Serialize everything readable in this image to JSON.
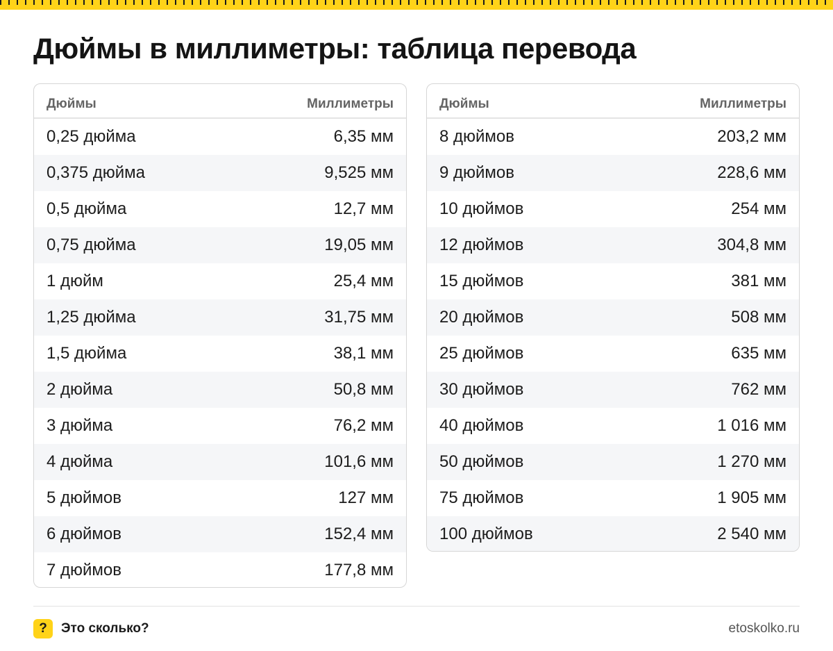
{
  "title": "Дюймы в миллиметры: таблица перевода",
  "table_header": {
    "inches": "Дюймы",
    "millimeters": "Миллиметры"
  },
  "left_rows": [
    {
      "inches": "0,25 дюйма",
      "mm": "6,35 мм"
    },
    {
      "inches": "0,375 дюйма",
      "mm": "9,525 мм"
    },
    {
      "inches": "0,5 дюйма",
      "mm": "12,7 мм"
    },
    {
      "inches": "0,75 дюйма",
      "mm": "19,05 мм"
    },
    {
      "inches": "1 дюйм",
      "mm": "25,4 мм"
    },
    {
      "inches": "1,25 дюйма",
      "mm": "31,75 мм"
    },
    {
      "inches": "1,5 дюйма",
      "mm": "38,1 мм"
    },
    {
      "inches": "2 дюйма",
      "mm": "50,8 мм"
    },
    {
      "inches": "3 дюйма",
      "mm": "76,2 мм"
    },
    {
      "inches": "4 дюйма",
      "mm": "101,6 мм"
    },
    {
      "inches": "5 дюймов",
      "mm": "127 мм"
    },
    {
      "inches": "6 дюймов",
      "mm": "152,4 мм"
    },
    {
      "inches": "7 дюймов",
      "mm": "177,8 мм"
    }
  ],
  "right_rows": [
    {
      "inches": "8 дюймов",
      "mm": "203,2 мм"
    },
    {
      "inches": "9 дюймов",
      "mm": "228,6 мм"
    },
    {
      "inches": "10 дюймов",
      "mm": "254 мм"
    },
    {
      "inches": "12 дюймов",
      "mm": "304,8 мм"
    },
    {
      "inches": "15 дюймов",
      "mm": "381 мм"
    },
    {
      "inches": "20 дюймов",
      "mm": "508 мм"
    },
    {
      "inches": "25 дюймов",
      "mm": "635 мм"
    },
    {
      "inches": "30 дюймов",
      "mm": "762 мм"
    },
    {
      "inches": "40 дюймов",
      "mm": "1 016 мм"
    },
    {
      "inches": "50 дюймов",
      "mm": "1 270 мм"
    },
    {
      "inches": "75 дюймов",
      "mm": "1 905 мм"
    },
    {
      "inches": "100 дюймов",
      "mm": "2 540 мм"
    }
  ],
  "footer": {
    "logo_symbol": "?",
    "brand": "Это сколько?",
    "site": "etoskolko.ru"
  },
  "colors": {
    "accent": "#ffd319",
    "row_stripe": "#f5f6f8",
    "border": "#d6d6d6"
  },
  "icons": {
    "ruler": "ruler-strip-icon",
    "logo": "question-mark-icon"
  }
}
